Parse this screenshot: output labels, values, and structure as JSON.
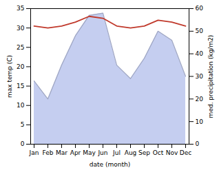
{
  "chart_data": {
    "type": "line",
    "categories": [
      "Jan",
      "Feb",
      "Mar",
      "Apr",
      "May",
      "Jun",
      "Jul",
      "Aug",
      "Sep",
      "Oct",
      "Nov",
      "Dec"
    ],
    "xlabel": "date (month)",
    "ylabel": "max temp (C)",
    "y2label": "med. precipitation (kg/m2)",
    "ylim": [
      0,
      35
    ],
    "yticks": [
      0,
      5,
      10,
      15,
      20,
      25,
      30,
      35
    ],
    "y2lim": [
      0,
      60
    ],
    "y2ticks": [
      0,
      10,
      20,
      30,
      40,
      50,
      60
    ],
    "grid": false,
    "series": [
      {
        "type": "area",
        "axis": "y2",
        "color": "#c5cef0",
        "values": [
          28.0,
          20.0,
          35.0,
          48.0,
          57.0,
          58.0,
          35.0,
          29.0,
          38.0,
          50.0,
          46.0,
          30.0
        ]
      },
      {
        "type": "line",
        "color": "#c0392b",
        "values": [
          30.5,
          30.0,
          30.5,
          31.5,
          33.0,
          32.5,
          30.5,
          30.0,
          30.5,
          32.0,
          31.5,
          30.5
        ]
      }
    ]
  }
}
